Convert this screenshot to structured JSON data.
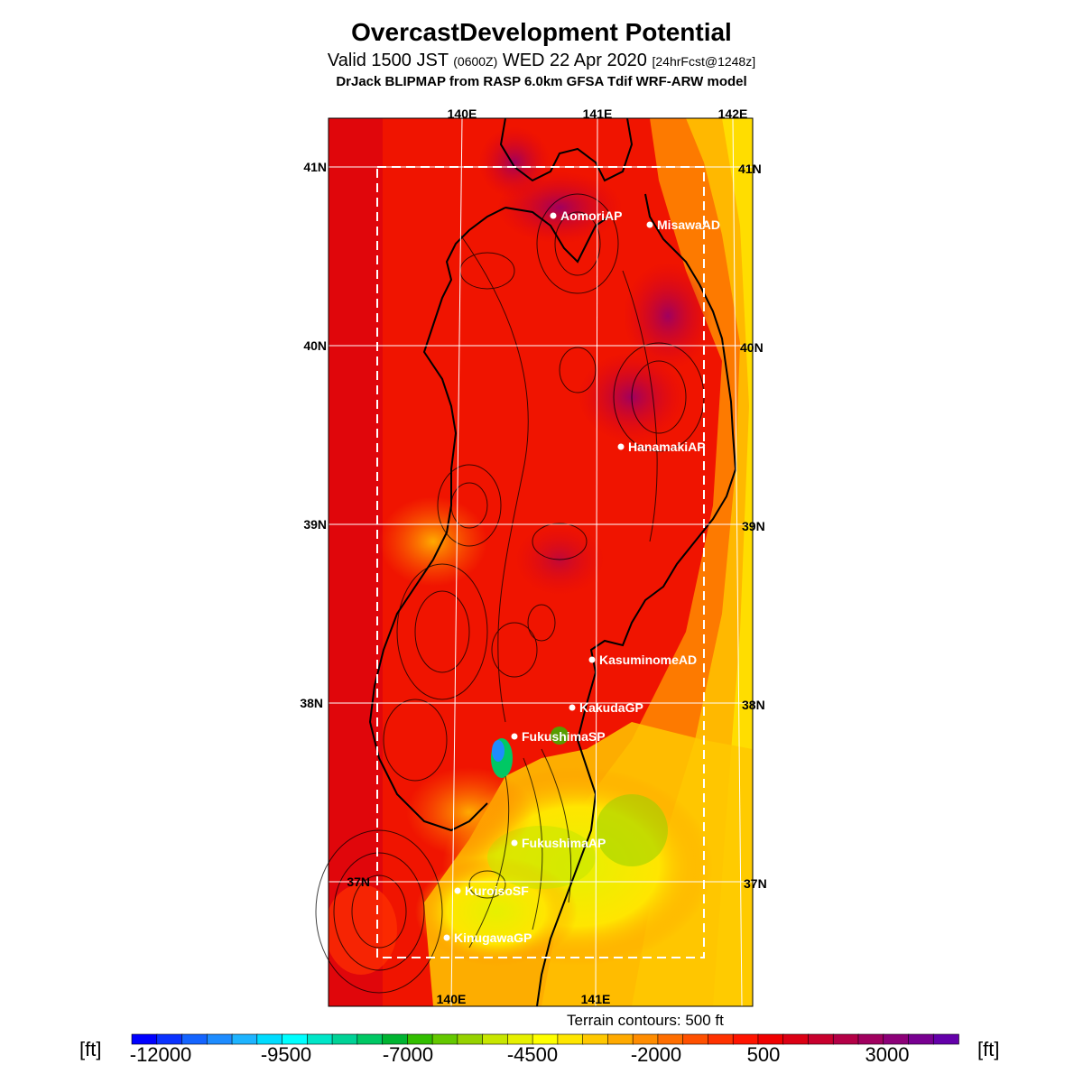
{
  "header": {
    "title": "OvercastDevelopment Potential",
    "valid_prefix": "Valid 1500 JST",
    "valid_zulu": "(0600Z)",
    "valid_date": "WED 22 Apr 2020",
    "forecast_info": "[24hrFcst@1248z]",
    "model_line": "DrJack BLIPMAP from RASP 6.0km GFSA Tdif WRF-ARW model"
  },
  "map": {
    "top_longitude_labels": [
      "140E",
      "141E",
      "142E"
    ],
    "bottom_longitude_labels": [
      "140E",
      "141E"
    ],
    "left_latitude_labels": [
      "41N",
      "40N",
      "39N",
      "38N",
      "37N"
    ],
    "right_latitude_labels": [
      "41N",
      "40N",
      "39N",
      "38N",
      "37N"
    ],
    "stations": [
      {
        "name": "AomoriAP"
      },
      {
        "name": "MisawaAD"
      },
      {
        "name": "HanamakiAP"
      },
      {
        "name": "KasuminomeAD"
      },
      {
        "name": "KakudaGP"
      },
      {
        "name": "FukushimaSP"
      },
      {
        "name": "FukushimaAP"
      },
      {
        "name": "KuroisoSF"
      },
      {
        "name": "KinugawaGP"
      }
    ],
    "terrain_note": "Terrain contours: 500 ft"
  },
  "colorbar": {
    "unit_left": "[ft]",
    "unit_right": "[ft]",
    "tick_labels": [
      "-12000",
      "-9500",
      "-7000",
      "-4500",
      "-2000",
      "500",
      "3000"
    ],
    "colors": [
      "#0000ff",
      "#0a32ff",
      "#1464ff",
      "#1e8cff",
      "#1eb4ff",
      "#00dcff",
      "#00ffff",
      "#00e6c8",
      "#00d296",
      "#00c864",
      "#00b432",
      "#32be00",
      "#64c800",
      "#96d200",
      "#c8e600",
      "#e6f000",
      "#ffff00",
      "#ffe600",
      "#ffc800",
      "#ffaa00",
      "#ff8c00",
      "#ff6e00",
      "#ff5000",
      "#ff3200",
      "#ff1400",
      "#f00000",
      "#dc0014",
      "#c8002d",
      "#b40046",
      "#a0005f",
      "#8c0078",
      "#780091",
      "#6400aa"
    ]
  }
}
